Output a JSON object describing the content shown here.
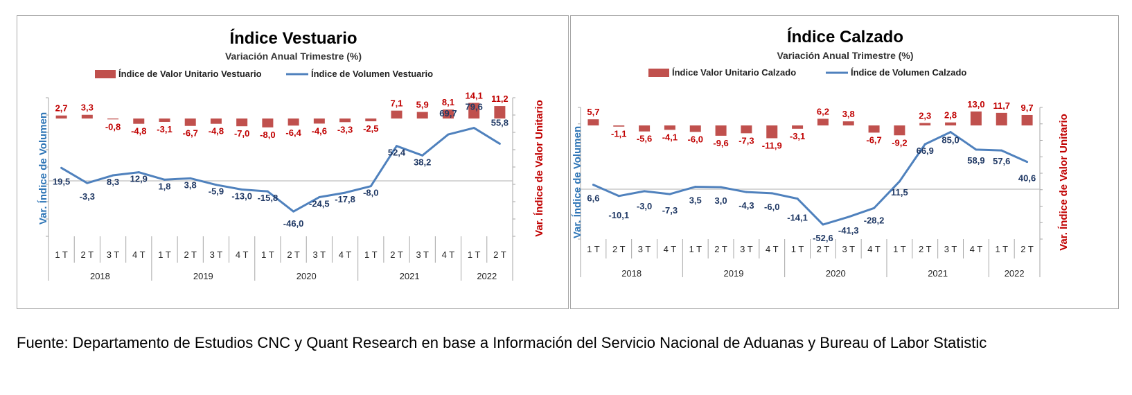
{
  "colors": {
    "bar": "#c0504d",
    "bar_label": "#c00000",
    "line": "#4f81bd",
    "line_label": "#1f3864",
    "left_axis_title": "#2e75b6",
    "right_axis_title": "#c00000",
    "axis": "#a6a6a6"
  },
  "source_text": "Fuente: Departamento de Estudios CNC y Quant Research en base a Información del Servicio Nacional de Aduanas y Bureau of Labor Statistic",
  "chart_data": [
    {
      "type": "bar+line",
      "title": "Índice Vestuario",
      "subtitle": "Variación Anual Trimestre  (%)",
      "ylabel_left": "Var. Índice de Volumen",
      "ylabel_right": "Var. Índice de Valor Unitario",
      "legend_position": "top",
      "quarters": [
        "1 T",
        "2 T",
        "3 T",
        "4 T",
        "1 T",
        "2 T",
        "3 T",
        "4 T",
        "1 T",
        "2 T",
        "3 T",
        "4 T",
        "1 T",
        "2 T",
        "3 T",
        "4 T",
        "1 T",
        "2 T"
      ],
      "years": [
        {
          "label": "2018",
          "count": 4
        },
        {
          "label": "2019",
          "count": 4
        },
        {
          "label": "2020",
          "count": 4
        },
        {
          "label": "2021",
          "count": 4
        },
        {
          "label": "2022",
          "count": 2
        }
      ],
      "series": [
        {
          "name": "Índice de Valor Unitario Vestuario",
          "kind": "bar",
          "values": [
            2.7,
            3.3,
            -0.8,
            -4.8,
            -3.1,
            -6.7,
            -4.8,
            -7.0,
            -8.0,
            -6.4,
            -4.6,
            -3.3,
            -2.5,
            7.1,
            5.9,
            8.1,
            14.1,
            11.2
          ],
          "labels": [
            "2,7",
            "3,3",
            "-0,8",
            "-4,8",
            "-3,1",
            "-6,7",
            "-4,8",
            "-7,0",
            "-8,0",
            "-6,4",
            "-4,6",
            "-3,3",
            "-2,5",
            "7,1",
            "5,9",
            "8,1",
            "14,1",
            "11,2"
          ]
        },
        {
          "name": "Índice de Volumen Vestuario",
          "kind": "line",
          "values": [
            19.5,
            -3.3,
            8.3,
            12.9,
            1.8,
            3.8,
            -5.9,
            -13.0,
            -15.8,
            -46.0,
            -24.5,
            -17.8,
            -8.0,
            52.4,
            38.2,
            69.7,
            79.6,
            55.8
          ],
          "labels": [
            "19,5",
            "-3,3",
            "8,3",
            "12,9",
            "1,8",
            "3,8",
            "-5,9",
            "-13,0",
            "-15,8",
            "-46,0",
            "-24,5",
            "-17,8",
            "-8,0",
            "52,4",
            "38,2",
            "69,7",
            "79,6",
            "55,8"
          ]
        }
      ]
    },
    {
      "type": "bar+line",
      "title": "Índice Calzado",
      "subtitle": "Variación Anual Trimestre  (%)",
      "ylabel_left": "Var. Índice de Volumen",
      "ylabel_right": "Var. Índice de Valor Unitario",
      "legend_position": "top",
      "quarters": [
        "1 T",
        "2 T",
        "3 T",
        "4 T",
        "1 T",
        "2 T",
        "3 T",
        "4 T",
        "1 T",
        "2 T",
        "3 T",
        "4 T",
        "1 T",
        "2 T",
        "3 T",
        "4 T",
        "1 T",
        "2 T"
      ],
      "years": [
        {
          "label": "2018",
          "count": 4
        },
        {
          "label": "2019",
          "count": 4
        },
        {
          "label": "2020",
          "count": 4
        },
        {
          "label": "2021",
          "count": 4
        },
        {
          "label": "2022",
          "count": 2
        }
      ],
      "series": [
        {
          "name": "Índice Valor Unitario Calzado",
          "kind": "bar",
          "values": [
            5.7,
            -1.1,
            -5.6,
            -4.1,
            -6.0,
            -9.6,
            -7.3,
            -11.9,
            -3.1,
            6.2,
            3.8,
            -6.7,
            -9.2,
            2.3,
            2.8,
            13.0,
            11.7,
            9.7
          ],
          "labels": [
            "5,7",
            "-1,1",
            "-5,6",
            "-4,1",
            "-6,0",
            "-9,6",
            "-7,3",
            "-11,9",
            "-3,1",
            "6,2",
            "3,8",
            "-6,7",
            "-9,2",
            "2,3",
            "2,8",
            "13,0",
            "11,7",
            "9,7"
          ]
        },
        {
          "name": "Índice de Volumen Calzado",
          "kind": "line",
          "values": [
            6.6,
            -10.1,
            -3.0,
            -7.3,
            3.5,
            3.0,
            -4.3,
            -6.0,
            -14.1,
            -52.6,
            -41.3,
            -28.2,
            11.5,
            66.9,
            85.0,
            58.9,
            57.6,
            40.6
          ],
          "labels": [
            "6,6",
            "-10,1",
            "-3,0",
            "-7,3",
            "3,5",
            "3,0",
            "-4,3",
            "-6,0",
            "-14,1",
            "-52,6",
            "-41,3",
            "-28,2",
            "11,5",
            "66,9",
            "85,0",
            "58,9",
            "57,6",
            "40,6"
          ]
        }
      ]
    }
  ]
}
